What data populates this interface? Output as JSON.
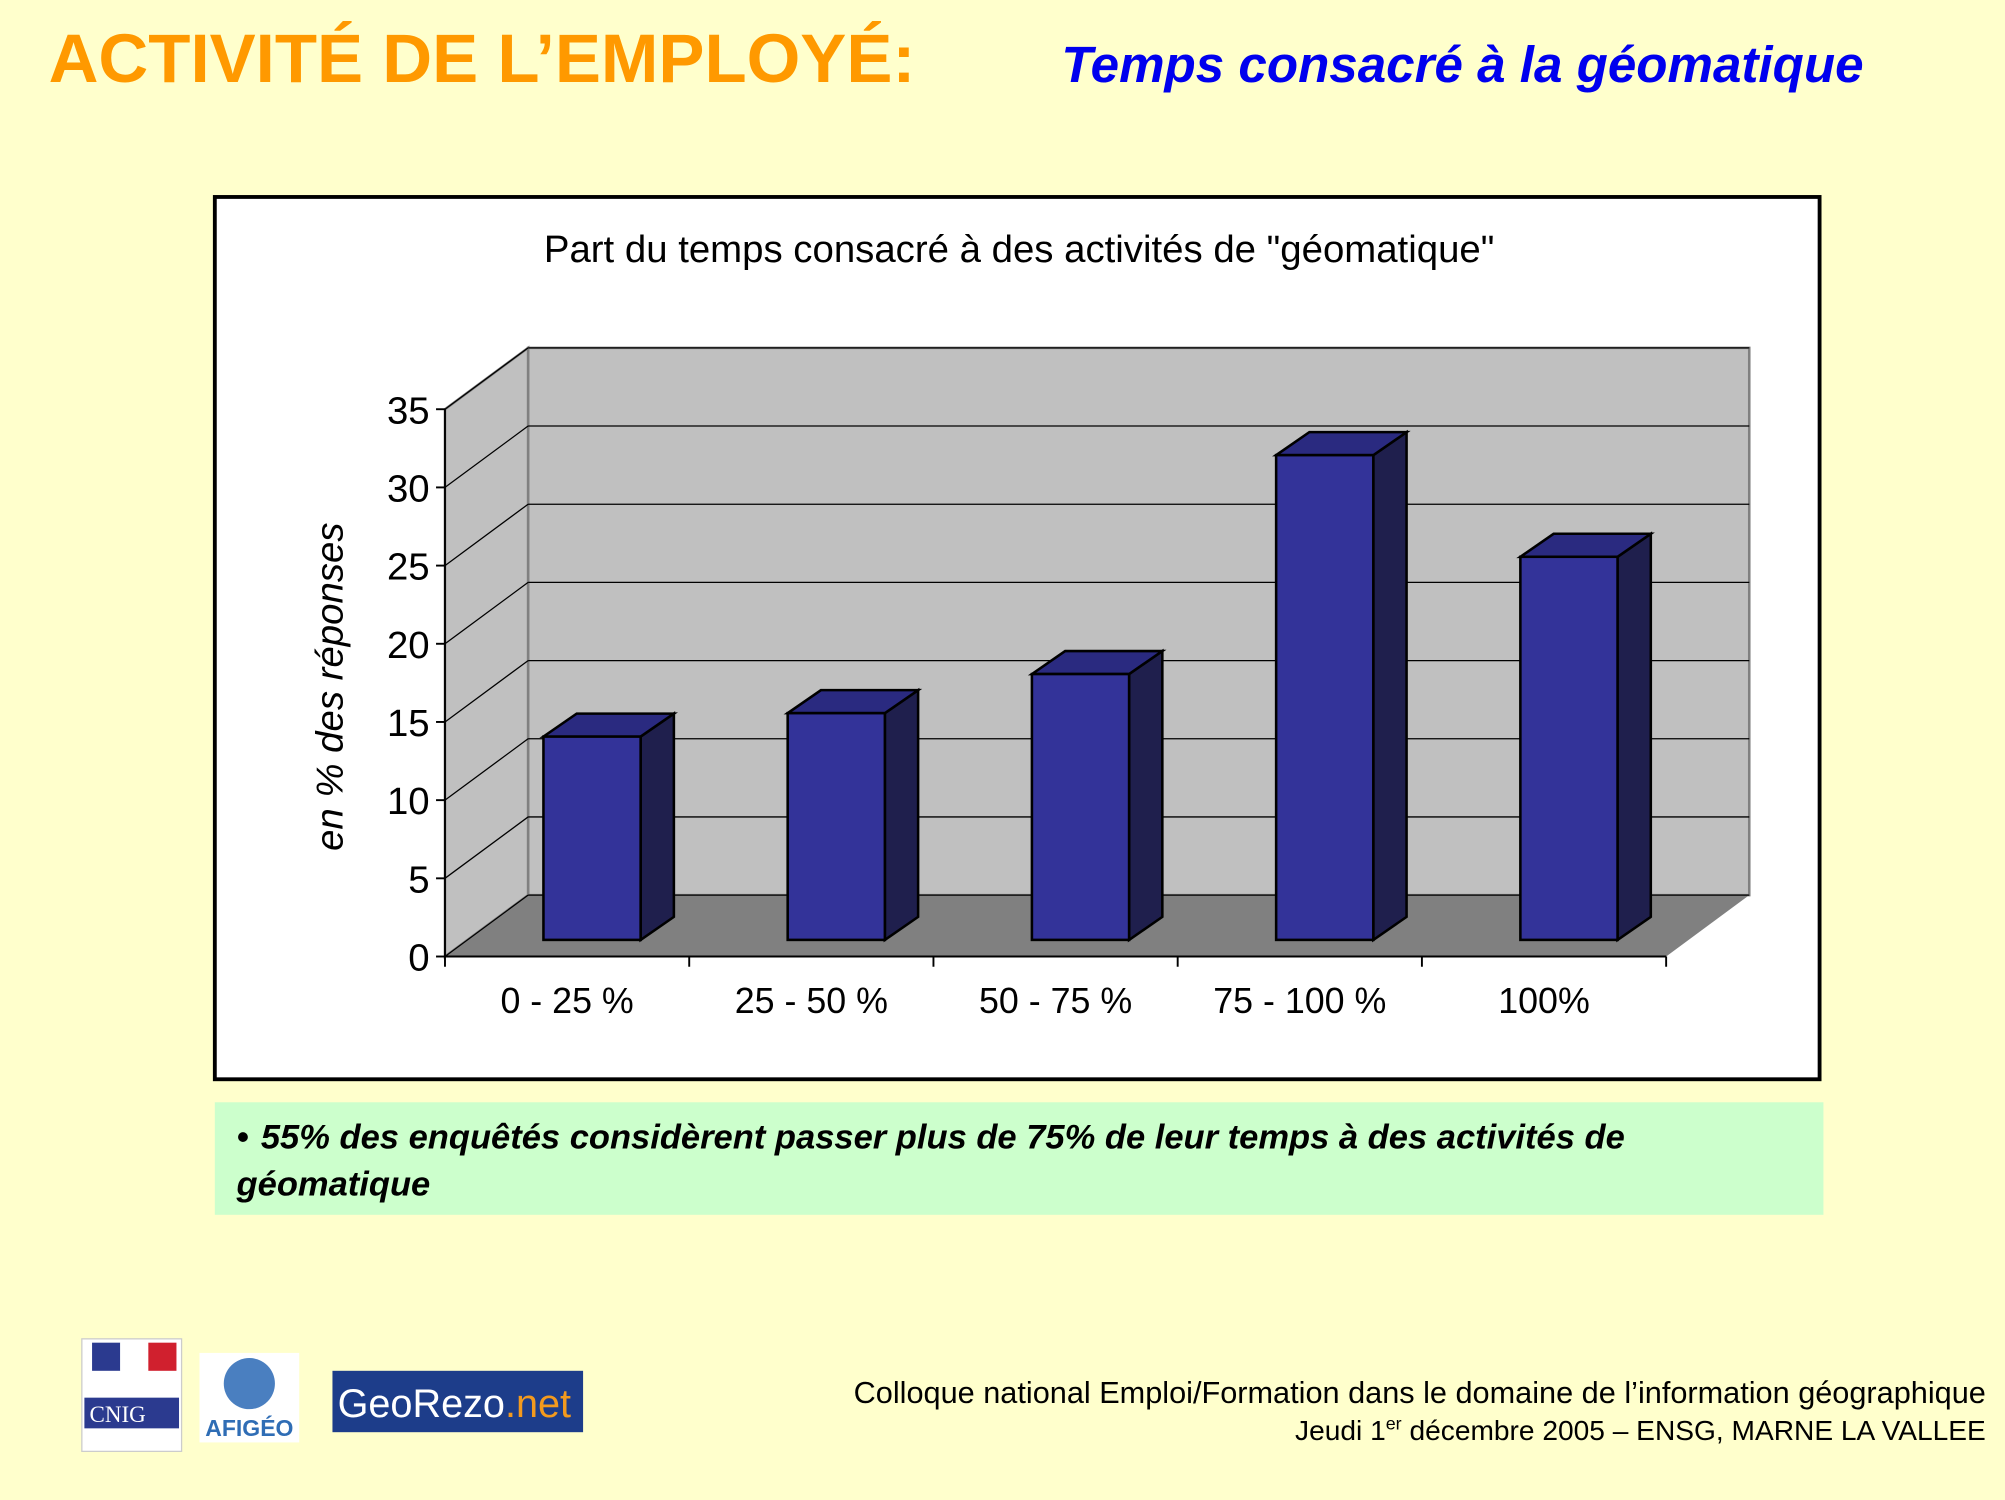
{
  "header": {
    "title": "ACTIVITÉ DE L’EMPLOYÉ:",
    "subtitle": "Temps consacré à la géomatique"
  },
  "chart_data": {
    "type": "bar3d",
    "title": "Part du temps consacré à des activités de \"géomatique\"",
    "y_label": "en % des réponses",
    "categories": [
      "0 - 25 %",
      "25 - 50 %",
      "50 - 75 %",
      "75 - 100 %",
      "100%"
    ],
    "values": [
      13,
      14.5,
      17,
      31,
      24.5
    ],
    "color": "#333399",
    "ylim": [
      0,
      35
    ],
    "yticks": [
      0,
      5,
      10,
      15,
      20,
      25,
      30,
      35
    ],
    "grid": true
  },
  "note": {
    "bullet": "•",
    "lines": [
      "55% des enquêtés considèrent passer plus de 75% de leur temps à des activités de",
      "géomatique"
    ]
  },
  "footer": {
    "line1": "Colloque national Emploi/Formation dans le domaine de l’information géographique",
    "line2_start": "Jeudi 1",
    "line2_sup": "er",
    "line2_end": " décembre 2005 – ENSG, MARNE LA VALLEE"
  },
  "logos": {
    "cnig": "CNIG",
    "afigeo": "AFIGÉO",
    "georezo": "GeoRezo",
    "georezo_suffix": ".net"
  }
}
